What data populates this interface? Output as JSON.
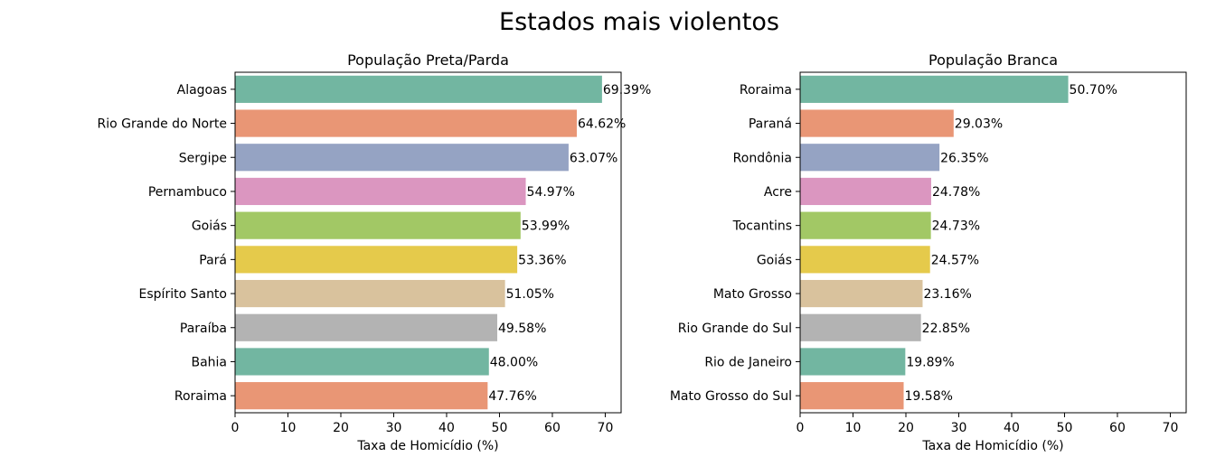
{
  "figure": {
    "title": "Estados mais violentos"
  },
  "chart_data": [
    {
      "type": "bar",
      "orientation": "horizontal",
      "title": "População Preta/Parda",
      "xlabel": "Taxa de Homicídio (%)",
      "ylabel": "",
      "xlim": [
        0,
        73
      ],
      "xticks": [
        0,
        10,
        20,
        30,
        40,
        50,
        60,
        70
      ],
      "grid": false,
      "categories": [
        "Alagoas",
        "Rio Grande do Norte",
        "Sergipe",
        "Pernambuco",
        "Goiás",
        "Pará",
        "Espírito Santo",
        "Paraíba",
        "Bahia",
        "Roraima"
      ],
      "values": [
        69.39,
        64.62,
        63.07,
        54.97,
        53.99,
        53.36,
        51.05,
        49.58,
        48.0,
        47.76
      ],
      "labels": [
        "69.39%",
        "64.62%",
        "63.07%",
        "54.97%",
        "53.99%",
        "53.36%",
        "51.05%",
        "49.58%",
        "48.00%",
        "47.76%"
      ],
      "colors": [
        "#72b6a1",
        "#e99675",
        "#95a3c3",
        "#db96c0",
        "#a2c865",
        "#e5ca4b",
        "#d9c29d",
        "#b3b3b3",
        "#72b6a1",
        "#e99675"
      ]
    },
    {
      "type": "bar",
      "orientation": "horizontal",
      "title": "População Branca",
      "xlabel": "Taxa de Homicídio (%)",
      "ylabel": "",
      "xlim": [
        0,
        73
      ],
      "xticks": [
        0,
        10,
        20,
        30,
        40,
        50,
        60,
        70
      ],
      "grid": false,
      "categories": [
        "Roraima",
        "Paraná",
        "Rondônia",
        "Acre",
        "Tocantins",
        "Goiás",
        "Mato Grosso",
        "Rio Grande do Sul",
        "Rio de Janeiro",
        "Mato Grosso do Sul"
      ],
      "values": [
        50.7,
        29.03,
        26.35,
        24.78,
        24.73,
        24.57,
        23.16,
        22.85,
        19.89,
        19.58
      ],
      "labels": [
        "50.70%",
        "29.03%",
        "26.35%",
        "24.78%",
        "24.73%",
        "24.57%",
        "23.16%",
        "22.85%",
        "19.89%",
        "19.58%"
      ],
      "colors": [
        "#72b6a1",
        "#e99675",
        "#95a3c3",
        "#db96c0",
        "#a2c865",
        "#e5ca4b",
        "#d9c29d",
        "#b3b3b3",
        "#72b6a1",
        "#e99675"
      ]
    }
  ]
}
